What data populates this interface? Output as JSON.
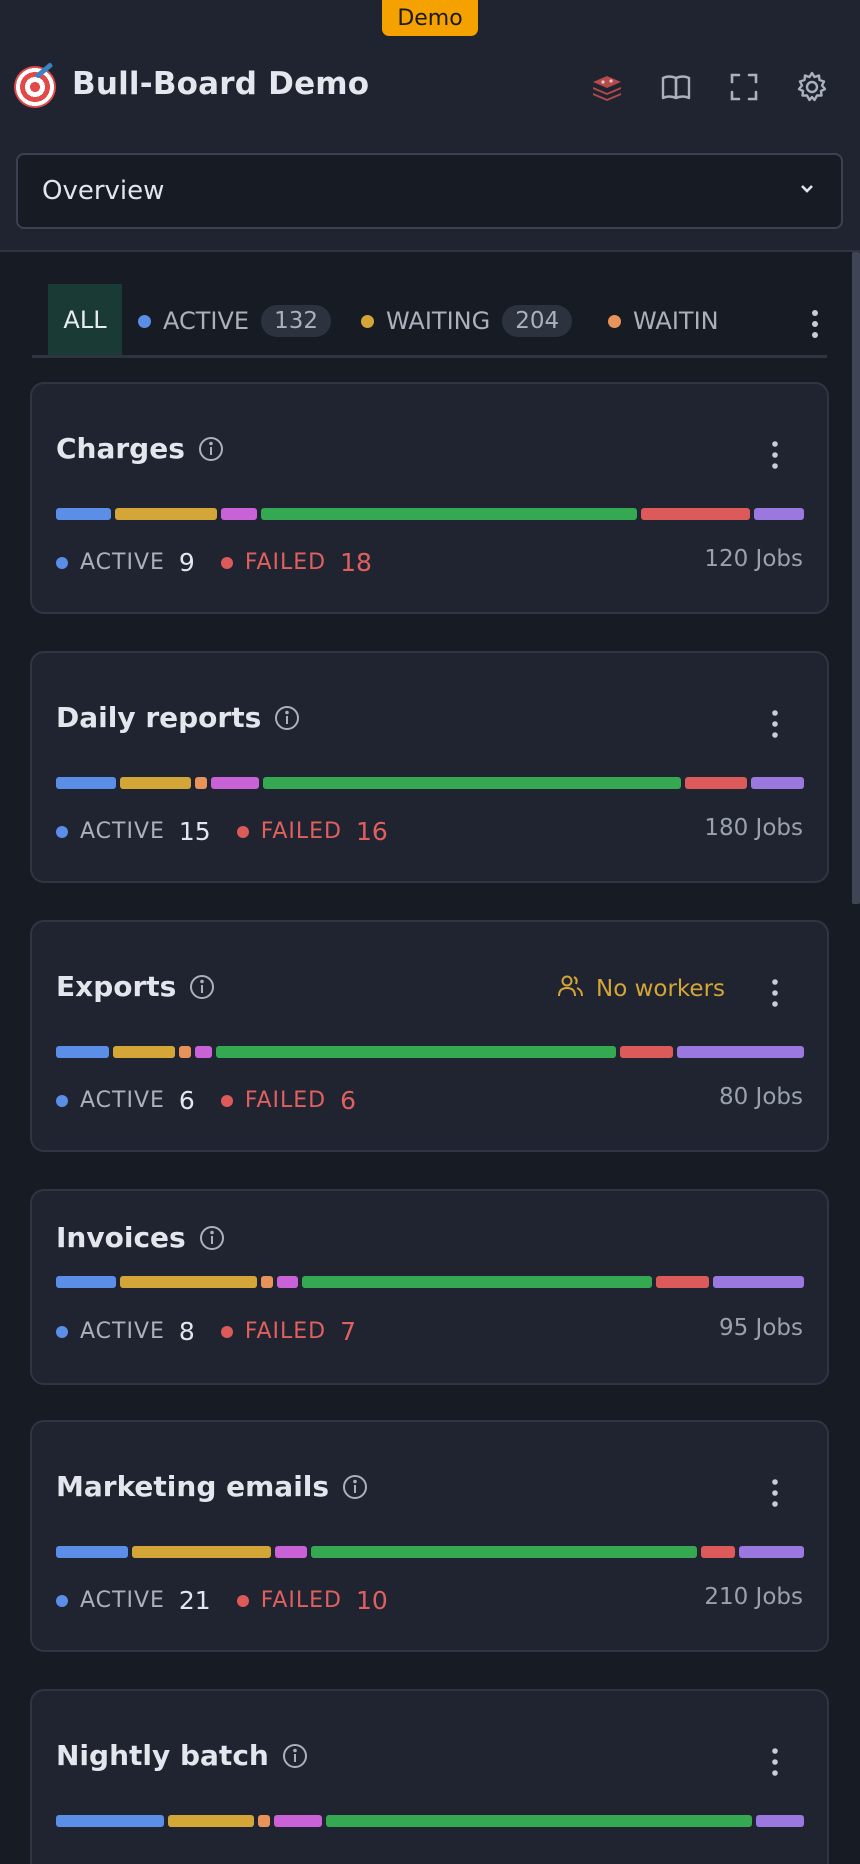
{
  "app": {
    "badge": "Demo",
    "title": "Bull-Board Demo",
    "header_icons": [
      "redis-icon",
      "book-icon",
      "fullscreen-icon",
      "settings-icon"
    ]
  },
  "selector": {
    "value": "Overview"
  },
  "tabs": {
    "all": "ALL",
    "items": [
      {
        "label": "ACTIVE",
        "count": "132",
        "color": "#5b8ee6"
      },
      {
        "label": "WAITING",
        "count": "204",
        "color": "#d4a537"
      },
      {
        "label": "WAITIN",
        "count": "",
        "color": "#e8935a"
      }
    ]
  },
  "colors": {
    "active": "#5b8ee6",
    "waiting": "#d4a537",
    "delayed": "#e8935a",
    "paused": "#c962d6",
    "completed": "#35a852",
    "failed": "#dd5a5a",
    "prioritized": "#9a78e0"
  },
  "queues": [
    {
      "name": "Charges",
      "active_label": "ACTIVE",
      "active": "9",
      "failed_label": "FAILED",
      "failed": "18",
      "jobs": "120 Jobs",
      "no_workers": "",
      "bar": [
        {
          "state": "active",
          "share": 46
        },
        {
          "state": "waiting",
          "share": 86
        },
        {
          "state": "paused",
          "share": 30
        },
        {
          "state": "completed",
          "share": 316
        },
        {
          "state": "failed",
          "share": 92
        },
        {
          "state": "prioritized",
          "share": 42
        }
      ]
    },
    {
      "name": "Daily reports",
      "active_label": "ACTIVE",
      "active": "15",
      "failed_label": "FAILED",
      "failed": "16",
      "jobs": "180 Jobs",
      "no_workers": "",
      "bar": [
        {
          "state": "active",
          "share": 50
        },
        {
          "state": "waiting",
          "share": 60
        },
        {
          "state": "delayed",
          "share": 10
        },
        {
          "state": "paused",
          "share": 40
        },
        {
          "state": "completed",
          "share": 350
        },
        {
          "state": "failed",
          "share": 52
        },
        {
          "state": "prioritized",
          "share": 44
        }
      ]
    },
    {
      "name": "Exports",
      "active_label": "ACTIVE",
      "active": "6",
      "failed_label": "FAILED",
      "failed": "6",
      "jobs": "80 Jobs",
      "no_workers": "No workers",
      "bar": [
        {
          "state": "active",
          "share": 44
        },
        {
          "state": "waiting",
          "share": 52
        },
        {
          "state": "delayed",
          "share": 10
        },
        {
          "state": "paused",
          "share": 14
        },
        {
          "state": "completed",
          "share": 334
        },
        {
          "state": "failed",
          "share": 44
        },
        {
          "state": "prioritized",
          "share": 106
        }
      ]
    },
    {
      "name": "Invoices",
      "active_label": "ACTIVE",
      "active": "8",
      "failed_label": "FAILED",
      "failed": "7",
      "jobs": "95 Jobs",
      "no_workers": "",
      "bar": [
        {
          "state": "active",
          "share": 50
        },
        {
          "state": "waiting",
          "share": 114
        },
        {
          "state": "delayed",
          "share": 10
        },
        {
          "state": "paused",
          "share": 18
        },
        {
          "state": "completed",
          "share": 292
        },
        {
          "state": "failed",
          "share": 44
        },
        {
          "state": "prioritized",
          "share": 76
        }
      ]
    },
    {
      "name": "Marketing emails",
      "active_label": "ACTIVE",
      "active": "21",
      "failed_label": "FAILED",
      "failed": "10",
      "jobs": "210 Jobs",
      "no_workers": "",
      "bar": [
        {
          "state": "active",
          "share": 60
        },
        {
          "state": "waiting",
          "share": 116
        },
        {
          "state": "paused",
          "share": 26
        },
        {
          "state": "completed",
          "share": 322
        },
        {
          "state": "failed",
          "share": 28
        },
        {
          "state": "prioritized",
          "share": 54
        }
      ]
    },
    {
      "name": "Nightly batch",
      "active_label": "",
      "active": "",
      "failed_label": "",
      "failed": "",
      "jobs": "",
      "no_workers": "",
      "bar": [
        {
          "state": "active",
          "share": 90
        },
        {
          "state": "waiting",
          "share": 72
        },
        {
          "state": "delayed",
          "share": 10
        },
        {
          "state": "paused",
          "share": 40
        },
        {
          "state": "completed",
          "share": 356
        },
        {
          "state": "prioritized",
          "share": 40
        }
      ]
    }
  ]
}
